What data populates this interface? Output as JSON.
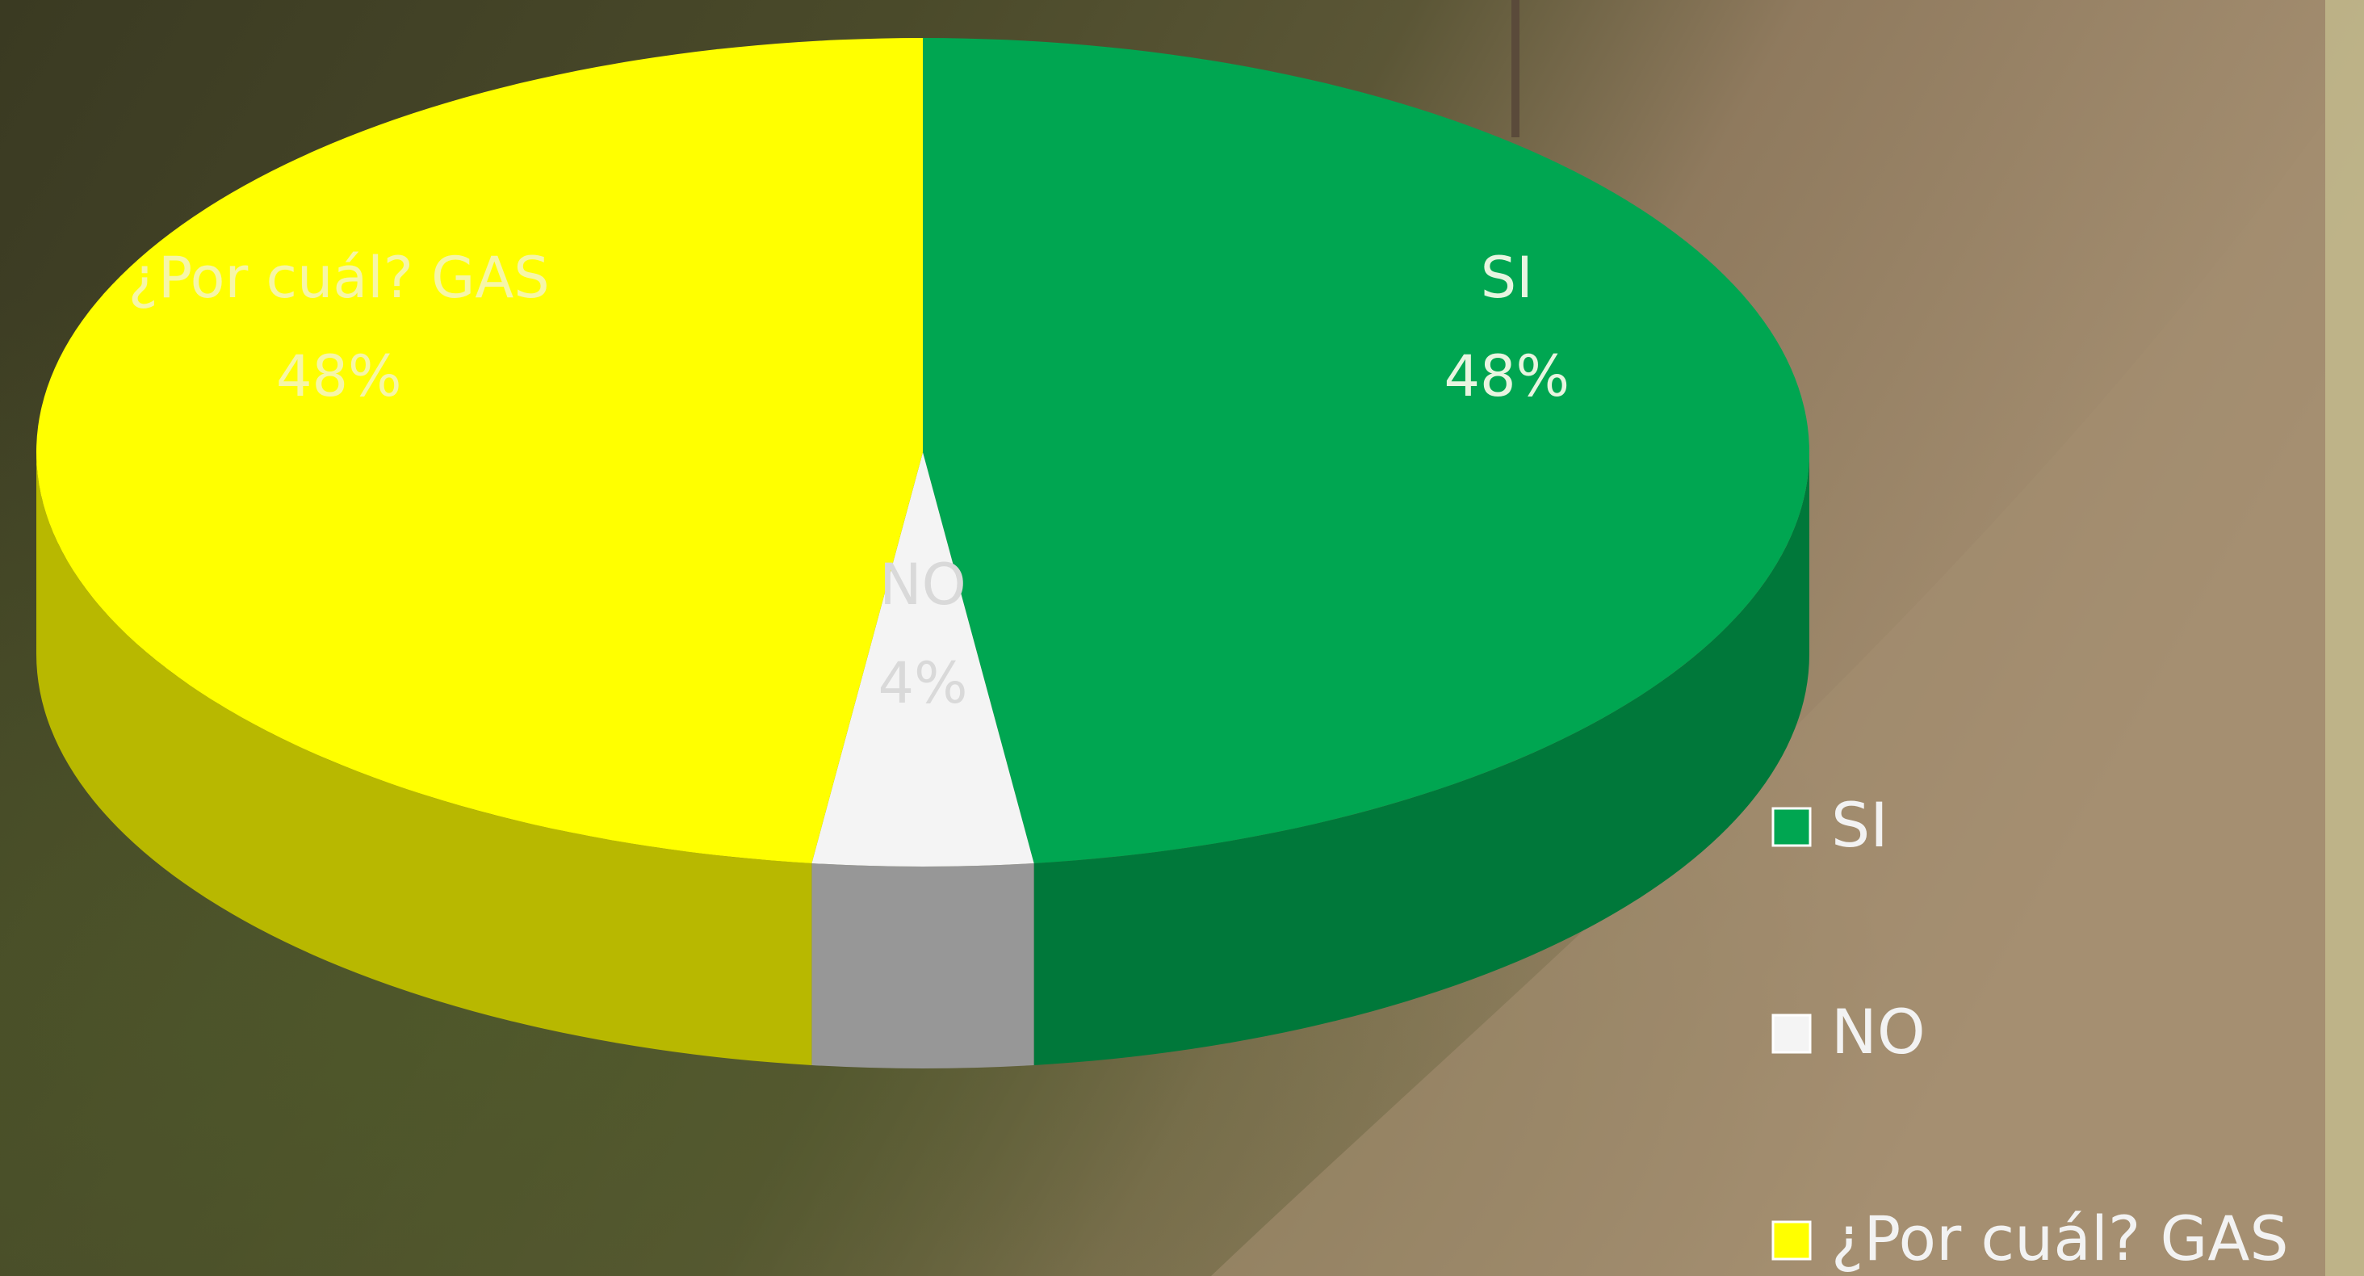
{
  "chart_data": {
    "type": "pie",
    "categories": [
      "SI",
      "NO",
      "¿Por cuál? GAS"
    ],
    "values": [
      48,
      4,
      48
    ],
    "value_labels": [
      "48%",
      "4%",
      "48%"
    ],
    "colors": [
      "#00a651",
      "#f4f4f4",
      "#ffff00"
    ],
    "legend": "right"
  }
}
